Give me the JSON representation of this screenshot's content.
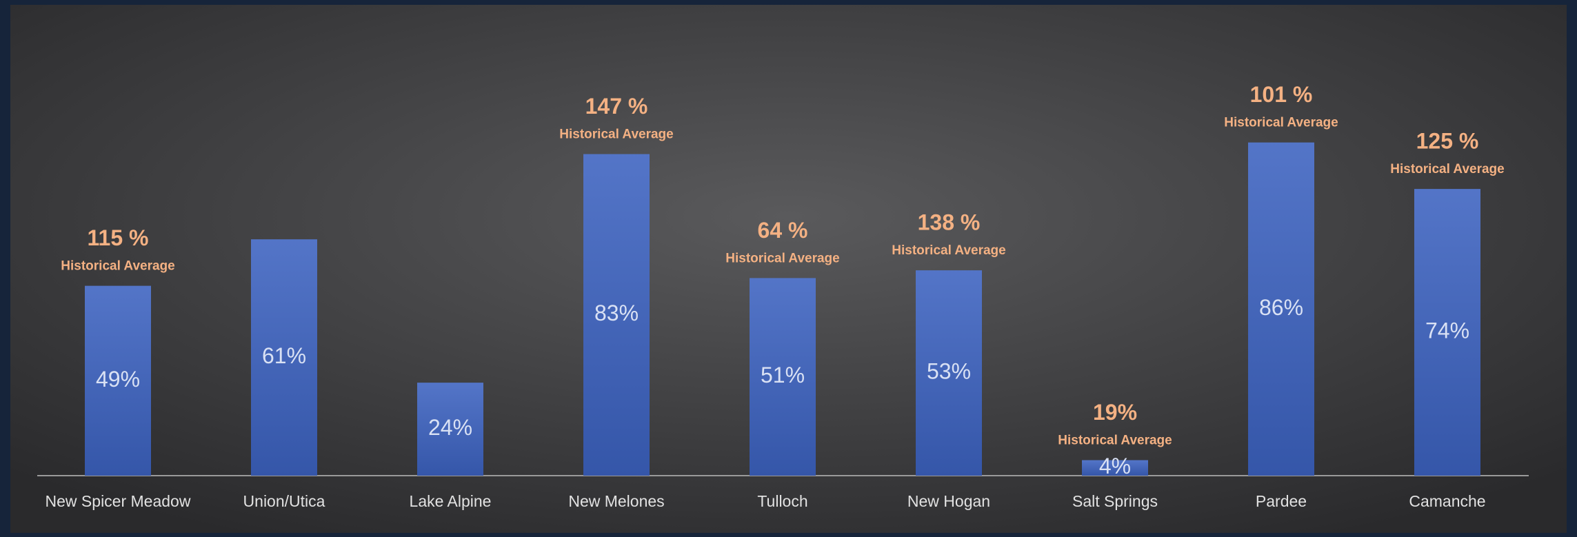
{
  "chart_data": {
    "type": "bar",
    "categories": [
      "New Spicer Meadow",
      "Union/Utica",
      "Lake Alpine",
      "New Melones",
      "Tulloch",
      "New Hogan",
      "Salt Springs",
      "Pardee",
      "Camanche"
    ],
    "values": [
      49,
      61,
      24,
      83,
      51,
      53,
      4,
      86,
      74
    ],
    "value_labels": [
      "49%",
      "61%",
      "24%",
      "83%",
      "51%",
      "53%",
      "4%",
      "86%",
      "74%"
    ],
    "historical_average_labels": [
      "115 %",
      null,
      null,
      "147 %",
      "64 %",
      "138 %",
      "19%",
      "101 %",
      "125 %"
    ],
    "historical_average_note": "Historical Average",
    "color": "#3c62c0",
    "ylim": [
      0,
      100
    ]
  }
}
